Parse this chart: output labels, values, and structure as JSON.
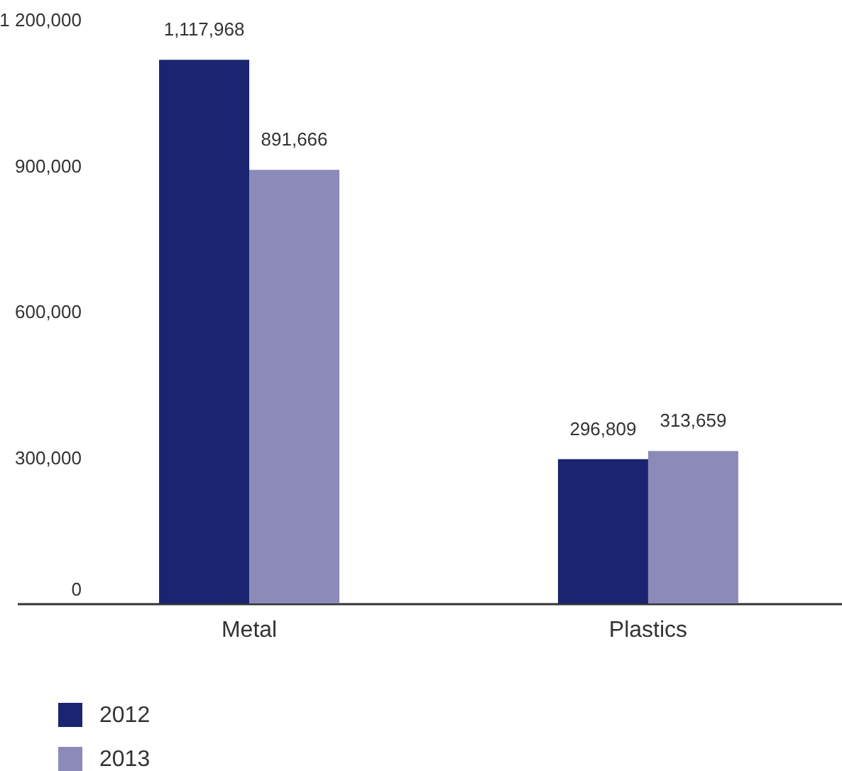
{
  "chart_data": {
    "type": "bar",
    "categories": [
      "Metal",
      "Plastics"
    ],
    "series": [
      {
        "name": "2012",
        "color": "#1a2470",
        "values": [
          1117968,
          296809
        ],
        "value_labels": [
          "1,117,968",
          "296,809"
        ]
      },
      {
        "name": "2013",
        "color": "#8c8ab8",
        "values": [
          891666,
          313659
        ],
        "value_labels": [
          "891,666",
          "313,659"
        ]
      }
    ],
    "ylim": [
      0,
      1200000
    ],
    "yticks": [
      0,
      {
        "value": 300000,
        "label": "300,000"
      },
      {
        "value": 600000,
        "label": "600,000"
      },
      {
        "value": 900000,
        "label": "900,000"
      },
      {
        "value": 1200000,
        "label": "1 200,000"
      }
    ],
    "legend": "bottom left"
  }
}
